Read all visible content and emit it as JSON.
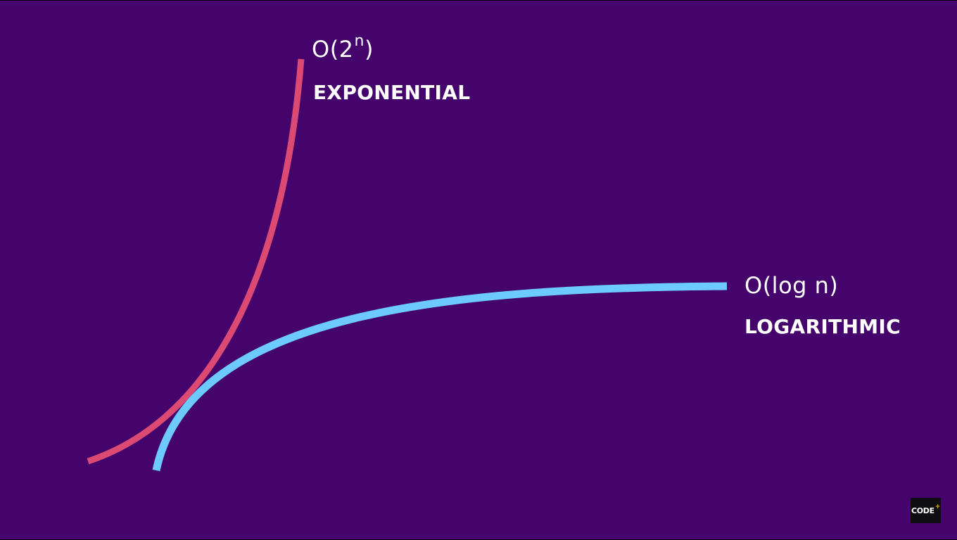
{
  "curves": [
    {
      "id": "exponential",
      "formula_base": "O(2",
      "formula_sup": "n",
      "formula_close": ")",
      "name": "EXPONENTIAL",
      "color": "#dc4a74"
    },
    {
      "id": "logarithmic",
      "formula": "O(log n)",
      "name": "LOGARITHMIC",
      "color": "#6dcaff"
    }
  ],
  "background_color": "#44046b",
  "logo": {
    "text": "CODE",
    "mark": "+",
    "mark_color": "#f5a623"
  }
}
